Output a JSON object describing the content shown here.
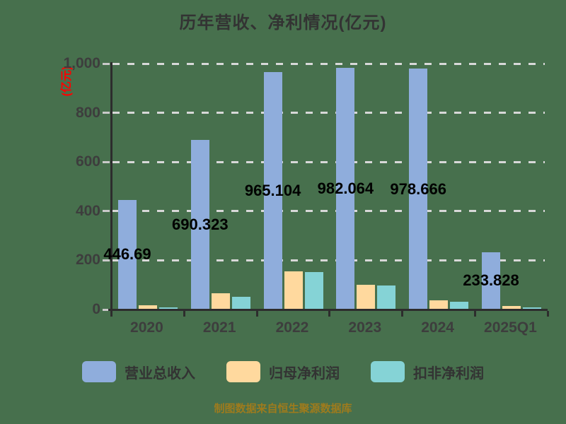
{
  "chart_data": {
    "type": "bar",
    "title": "历年营收、净利情况(亿元)",
    "categories": [
      "2020",
      "2021",
      "2022",
      "2023",
      "2024",
      "2025Q1"
    ],
    "series": [
      {
        "name": "营业总收入",
        "color": "#8FADDC",
        "values": [
          446.69,
          690.323,
          965.104,
          982.064,
          978.666,
          233.828
        ],
        "labels": [
          "446.69",
          "690.323",
          "965.104",
          "982.064",
          "978.666",
          "233.828"
        ]
      },
      {
        "name": "归母净利润",
        "color": "#FFD99E",
        "estimated": true,
        "values": [
          17,
          66,
          156,
          101,
          38,
          13
        ]
      },
      {
        "name": "扣非净利润",
        "color": "#85D3D6",
        "estimated": true,
        "values": [
          10,
          52,
          153,
          98,
          33,
          10
        ]
      }
    ],
    "xlabel": "",
    "ylabel": "(亿元)",
    "ylim": [
      0,
      1000
    ],
    "grid": "horizontal-dashed",
    "legend_position": "bottom"
  },
  "y_axis": {
    "unit_label": "(亿元)",
    "tick_values": [
      0,
      200,
      400,
      600,
      800,
      1000
    ],
    "tick_labels": [
      "0",
      "200",
      "400",
      "600",
      "800",
      "1,000"
    ]
  },
  "legend": {
    "items": [
      {
        "label": "营业总收入",
        "color": "#8FADDC"
      },
      {
        "label": "归母净利润",
        "color": "#FFD99E"
      },
      {
        "label": "扣非净利润",
        "color": "#85D3D6"
      }
    ]
  },
  "footer": {
    "text": "制图数据来自恒生聚源数据库"
  },
  "colors": {
    "background": "#47704D",
    "axis": "#2D2D2D",
    "gridline": "#D8D8D8",
    "title": "#333333",
    "tick_label": "#3D3D3D",
    "value_label": "#000000",
    "unit_label": "#FF0000",
    "footer_text": "#9E7B1D",
    "bar_blue": "#8FADDC",
    "bar_orange": "#FFD99E",
    "bar_teal": "#85D3D6"
  }
}
